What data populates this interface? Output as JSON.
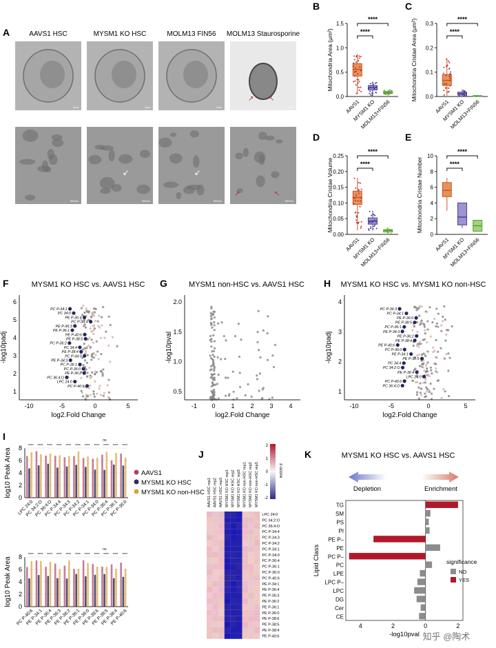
{
  "figure": {
    "panel_letters": [
      "A",
      "B",
      "C",
      "D",
      "E",
      "F",
      "G",
      "H",
      "I",
      "J",
      "K"
    ],
    "watermark": "知乎 @陶术"
  },
  "panelA": {
    "column_titles": [
      "AAVS1 HSC",
      "MYSM1 KO HSC",
      "MOLM13 FIN56",
      "MOLM13 Staurosporine"
    ],
    "scale_labels_top": [
      "2μm",
      "2μm",
      "2μm",
      "2μm"
    ],
    "scale_labels_bottom": [
      "500nm",
      "500nm",
      "500nm",
      "500nm"
    ]
  },
  "boxplots": {
    "categories": [
      "AAVS1",
      "MYSM1 KO",
      "MOLM13+FIN56"
    ],
    "significance": [
      "****",
      "****"
    ],
    "B": {
      "ylabel": "Mitochondria Area (μm²)",
      "ticks": [
        "0.0",
        "0.5",
        "1.0",
        "1.5"
      ]
    },
    "C": {
      "ylabel": "Mitochondria Cristae Area (μm²)",
      "ticks": [
        "0.0",
        "0.1",
        "0.2",
        "0.3"
      ]
    },
    "D": {
      "ylabel": "Mitochondria Cristae Volume",
      "ticks": [
        "0.00",
        "0.05",
        "0.10",
        "0.15",
        "0.20",
        "0.25"
      ]
    },
    "E": {
      "ylabel": "Mitochondria Cristae Number",
      "ticks": [
        "0",
        "2",
        "4",
        "6",
        "8",
        "10"
      ]
    }
  },
  "volcanoF": {
    "title": "MYSM1 KO HSC vs. AAVS1 HSC",
    "xlabel": "log2.Fold Change",
    "ylabel": "-log10padj",
    "xticks": [
      "-10",
      "-5",
      "0",
      "5"
    ],
    "yticks": [
      "1",
      "2",
      "3",
      "4",
      "5",
      "6"
    ],
    "labels": [
      "PC P-34:1",
      "PC 34:0",
      "PE P-36:4",
      "PC P-38:4",
      "PE P-36:3",
      "PE P-36:1",
      "PE P-40:6",
      "PE P-38:5",
      "PC P-36:2",
      "PC 34:4",
      "PE P-38:4",
      "PC P-34:0",
      "PE P-34:3",
      "PC P-36:1",
      "PC P-36:0",
      "PE P-36:2",
      "PC 36:4:O",
      "LPC 24:0",
      "PC P-40:6"
    ]
  },
  "volcanoG": {
    "title": "MYSM1 non-HSC vs. AAVS1 HSC",
    "xlabel": "log2.Fold Change",
    "ylabel": "-log10pval",
    "xticks": [
      "-1",
      "0",
      "1",
      "2",
      "3",
      "4"
    ],
    "yticks": [
      "0.5",
      "1.0",
      "1.5",
      "2.0"
    ]
  },
  "volcanoH": {
    "title": "MYSM1 KO HSC vs. MYSM1 KO non-HSC",
    "xlabel": "log2.Fold Change",
    "ylabel": "-log10padj",
    "xticks": [
      "-10",
      "-5",
      "0",
      "5"
    ],
    "yticks": [
      "1",
      "2",
      "3",
      "4"
    ],
    "labels": [
      "PC P-36:3",
      "PC P-34:1",
      "PE P-36:0",
      "PE P-38:5",
      "PC P-36:1",
      "PE P-34:3",
      "PE P-36:2",
      "PE P-38:4",
      "PE P-40:6",
      "PC P-36:0",
      "PE P-34:1",
      "PE P-36:5",
      "PC 34:4",
      "PC 34:2:O",
      "PE P-36:4",
      "LPC 24:0",
      "PC P-40:6",
      "PC 36:4:O"
    ]
  },
  "panelI": {
    "ylabel": "log10 Peak Area",
    "yticks": [
      "0",
      "2",
      "4",
      "6",
      "8"
    ],
    "legend": [
      "AAVS1",
      "MYSM1 KO HSC",
      "MYSM1 KO non-HSC"
    ],
    "colors": [
      "#b0436b",
      "#2f2f57",
      "#d9a23c"
    ],
    "top_categories": [
      "LPC 24:0",
      "PC 34:2:O",
      "PC 36:4:O",
      "PC P-34:4",
      "PC P-34:3",
      "PC P-34:2",
      "PC P-34:1",
      "PC P-34:0",
      "PC P-36:4",
      "PC P-36:1",
      "PC P-36:0"
    ],
    "bottom_categories": [
      "PC P-40:6",
      "PE P-34:1",
      "PE P-36:4",
      "PE P-36:3",
      "PE P-36:2",
      "PE P-36:1",
      "PE P-36:0",
      "PE P-38:6",
      "PE P-38:5",
      "PE P-38:4",
      "PE P-40:6"
    ],
    "sig": "****",
    "ns": "ns"
  },
  "panelJ": {
    "columns": [
      "AAVS1 HSC rep1",
      "AAVS1 HSC rep2",
      "AAVS1 HSC rep3",
      "MYSM1 KO HSC rep1",
      "MYSM1 KO HSC rep2",
      "MYSM1 KO HSC rep3",
      "MYSM1 KO non-HSC rep1",
      "MYSM1 KO non-HSC rep2",
      "MYSM1 KO non-HSC rep3"
    ],
    "rows": [
      "LPC 24:0",
      "PC 34:2:O",
      "PC 36:4:O",
      "PC P-34:4",
      "PC P-34:3",
      "PC P-34:2",
      "PC P-34:1",
      "PC P-34:0",
      "PC P-36:4",
      "PC P-36:1",
      "PC P-36:0",
      "PC P-40:6",
      "PE P-34:1",
      "PE P-36:4",
      "PE P-36:3",
      "PE P-36:2",
      "PE P-36:1",
      "PE P-36:0",
      "PE P-38:6",
      "PE P-38:5",
      "PE P-38:4",
      "PE P-40:6"
    ],
    "scale_title": "z-score",
    "scale_ticks": [
      "2",
      "1",
      "0",
      "-1",
      "-2"
    ]
  },
  "panelK": {
    "title": "MYSM1 KO HSC vs. AAVS1 HSC",
    "depletion": "Depletion",
    "enrichment": "Enrichment",
    "ylabel": "Lipid Class",
    "xlabel": "-log10pval",
    "xticks": [
      "4",
      "2",
      "0",
      "2"
    ],
    "legend_title": "significance",
    "legend": [
      "NO",
      "YES"
    ],
    "colors": {
      "no": "#8c8c8c",
      "yes": "#b2182b"
    },
    "classes": [
      "TG",
      "SM",
      "PS",
      "PI",
      "PE P–",
      "PE",
      "PC P–",
      "PC",
      "LPE",
      "LPC P–",
      "LPC",
      "DG",
      "Cer",
      "CE"
    ],
    "values": [
      2.0,
      0.3,
      0.2,
      0.25,
      -3.2,
      0.9,
      -4.7,
      0.4,
      -0.35,
      -0.5,
      -0.7,
      -0.55,
      -0.3,
      -0.4
    ],
    "significant": [
      true,
      false,
      false,
      false,
      true,
      false,
      true,
      false,
      false,
      false,
      false,
      false,
      false,
      false
    ]
  },
  "chart_data": [
    {
      "type": "bar",
      "title": "",
      "xlabel": "-log10pval",
      "ylabel": "Lipid Class",
      "categories": [
        "TG",
        "SM",
        "PS",
        "PI",
        "PE P–",
        "PE",
        "PC P–",
        "PC",
        "LPE",
        "LPC P–",
        "LPC",
        "DG",
        "Cer",
        "CE"
      ],
      "values": [
        2.0,
        0.3,
        0.2,
        0.25,
        -3.2,
        0.9,
        -4.7,
        0.4,
        -0.35,
        -0.5,
        -0.7,
        -0.55,
        -0.3,
        -0.4
      ]
    }
  ]
}
